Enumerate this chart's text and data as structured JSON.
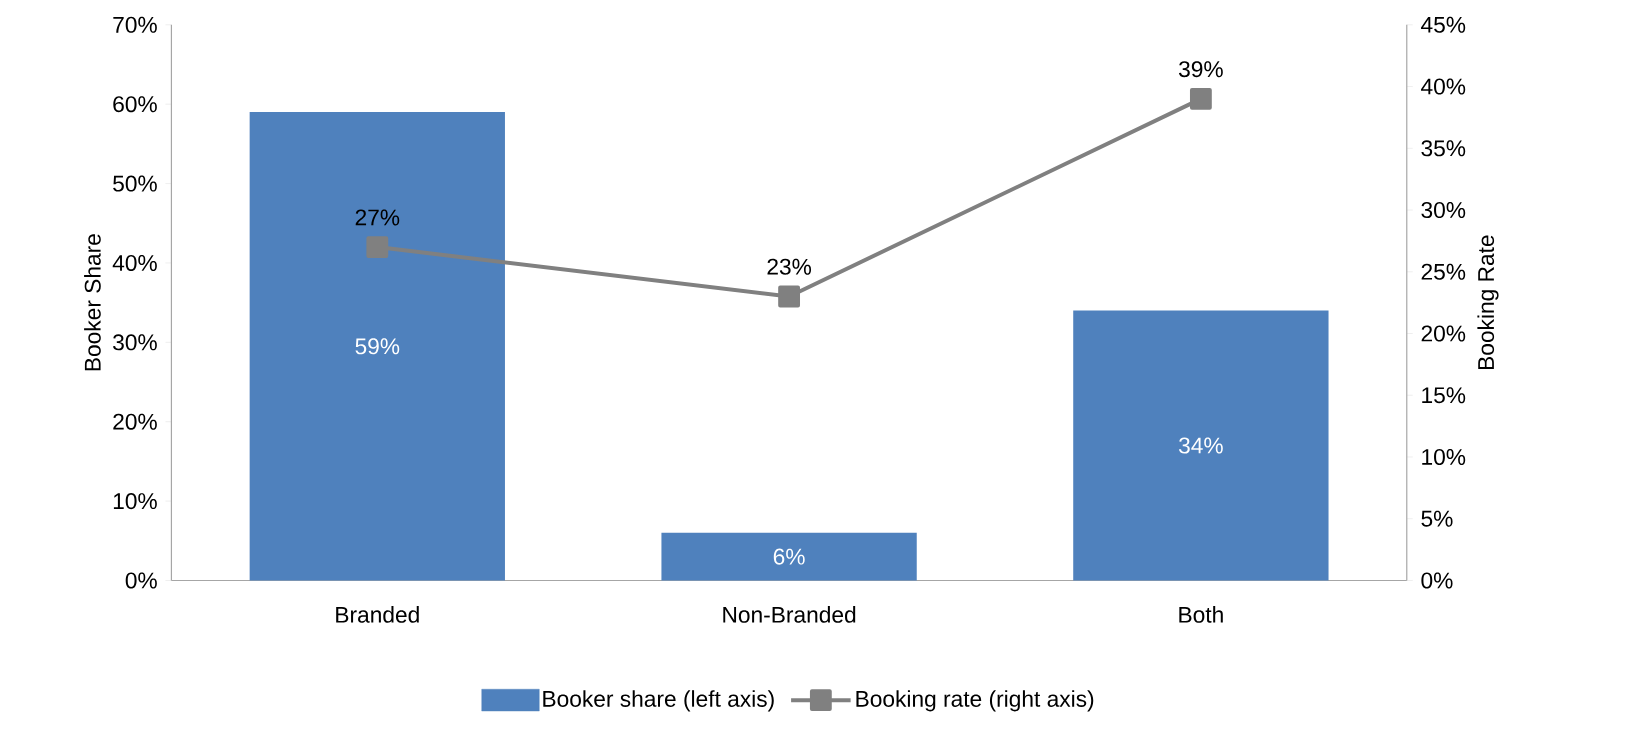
{
  "chart_data": {
    "type": "bar",
    "ylabel": "Booker Share",
    "y2label": "Booking Rate",
    "categories": [
      "Branded",
      "Non-Branded",
      "Both"
    ],
    "series": [
      {
        "name": "Booker share (left axis)",
        "color": "#4f81bd",
        "values": [
          59,
          6,
          34
        ],
        "value_labels": [
          "59%",
          "6%",
          "34%"
        ]
      },
      {
        "name": "Booking rate (right axis)",
        "type": "line",
        "axis": "y2",
        "color": "#808080",
        "marker": "square",
        "values": [
          27,
          23,
          39
        ],
        "value_labels": [
          "27%",
          "23%",
          "39%"
        ]
      }
    ],
    "ylim": [
      0,
      70
    ],
    "yticks": [
      {
        "value": 0,
        "label": "0%"
      },
      {
        "value": 10,
        "label": "10%"
      },
      {
        "value": 20,
        "label": "20%"
      },
      {
        "value": 30,
        "label": "30%"
      },
      {
        "value": 40,
        "label": "40%"
      },
      {
        "value": 50,
        "label": "50%"
      },
      {
        "value": 60,
        "label": "60%"
      },
      {
        "value": 70,
        "label": "70%"
      }
    ],
    "y2lim": [
      0,
      45
    ],
    "y2ticks": [
      {
        "value": 0,
        "label": "0%"
      },
      {
        "value": 5,
        "label": "5%"
      },
      {
        "value": 10,
        "label": "10%"
      },
      {
        "value": 15,
        "label": "15%"
      },
      {
        "value": 20,
        "label": "20%"
      },
      {
        "value": 25,
        "label": "25%"
      },
      {
        "value": 30,
        "label": "30%"
      },
      {
        "value": 35,
        "label": "35%"
      },
      {
        "value": 40,
        "label": "40%"
      },
      {
        "value": 45,
        "label": "45%"
      }
    ],
    "grid": false,
    "legend": "bottom"
  }
}
